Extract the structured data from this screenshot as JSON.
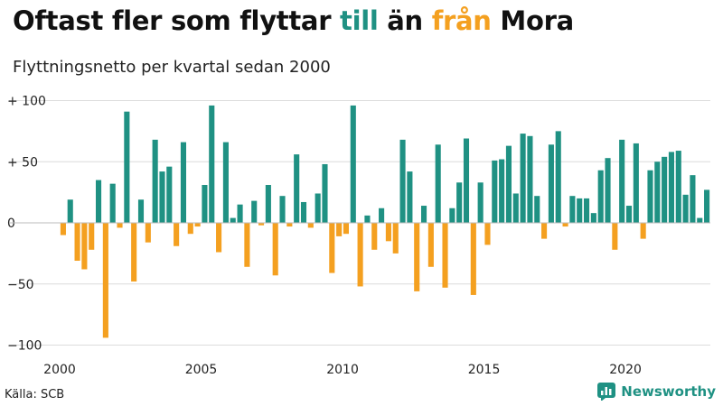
{
  "title": {
    "part1": "Oftast fler som flyttar ",
    "word_in": "till",
    "part2": " än ",
    "word_out": "från",
    "part3": " Mora"
  },
  "subtitle": "Flyttningsnetto per kvartal sedan 2000",
  "source": "Källa: SCB",
  "brand": "Newsworthy",
  "colors": {
    "positive": "#1f9183",
    "negative": "#f4a020",
    "grid": "#dcdcdc",
    "baseline": "#bbbbbb",
    "brand": "#1f9183"
  },
  "chart_data": {
    "type": "bar",
    "x_start": "2000 Q1",
    "values": [
      -10,
      19,
      -31,
      -38,
      -22,
      35,
      -94,
      32,
      -4,
      91,
      -48,
      19,
      -16,
      68,
      42,
      46,
      -19,
      66,
      -9,
      -3,
      31,
      96,
      -24,
      66,
      4,
      15,
      -36,
      18,
      -2,
      31,
      -43,
      22,
      -3,
      56,
      17,
      -4,
      24,
      48,
      -41,
      -11,
      -9,
      96,
      -52,
      6,
      -22,
      12,
      -15,
      -25,
      68,
      42,
      -56,
      14,
      -36,
      64,
      -53,
      12,
      33,
      69,
      -59,
      33,
      -18,
      51,
      52,
      63,
      24,
      73,
      71,
      22,
      -13,
      64,
      75,
      -3,
      22,
      20,
      20,
      8,
      43,
      53,
      -22,
      68,
      14,
      65,
      -13,
      43,
      50,
      54,
      58,
      59,
      23,
      39,
      4,
      27
    ],
    "yticks": [
      {
        "value": 100,
        "label": "+ 100"
      },
      {
        "value": 50,
        "label": "+  50"
      },
      {
        "value": 0,
        "label": "0"
      },
      {
        "value": -50,
        "label": "−50"
      },
      {
        "value": -100,
        "label": "−100"
      }
    ],
    "xticks": [
      {
        "year": 2000,
        "label": "2000"
      },
      {
        "year": 2005,
        "label": "2005"
      },
      {
        "year": 2010,
        "label": "2010"
      },
      {
        "year": 2015,
        "label": "2015"
      },
      {
        "year": 2020,
        "label": "2020"
      }
    ],
    "ylim": [
      -100,
      100
    ],
    "grid": true
  }
}
